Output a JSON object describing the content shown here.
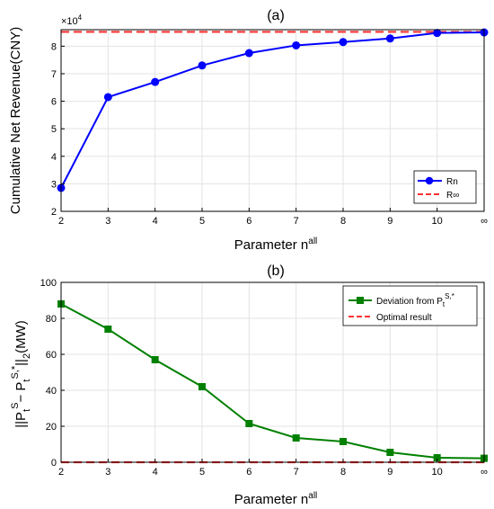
{
  "chart_data": [
    {
      "type": "line",
      "title": "(a)",
      "xlabel_main": "Parameter n",
      "xlabel_sup": "all",
      "ylabel": "Cumulative Net Revenue(CNY)",
      "multiplier_base": "×10",
      "multiplier_exp": "4",
      "categories": [
        "2",
        "3",
        "4",
        "5",
        "6",
        "7",
        "8",
        "9",
        "10",
        "∞"
      ],
      "ylim": [
        2,
        8.6
      ],
      "yticks": [
        2,
        3,
        4,
        5,
        6,
        7,
        8
      ],
      "grid": true,
      "legend_position": "bottom-right",
      "series": [
        {
          "name": "Rn",
          "values": [
            2.85,
            6.15,
            6.7,
            7.3,
            7.75,
            8.03,
            8.15,
            8.28,
            8.48,
            8.5
          ],
          "color": "#0000ff",
          "marker": "circle",
          "style": "solid"
        },
        {
          "name": "R∞",
          "values": [
            8.52,
            8.52,
            8.52,
            8.52,
            8.52,
            8.52,
            8.52,
            8.52,
            8.52,
            8.52
          ],
          "color": "#ff3333",
          "marker": "none",
          "style": "dashed"
        }
      ]
    },
    {
      "type": "line",
      "title": "(b)",
      "xlabel_main": "Parameter n",
      "xlabel_sup": "all",
      "ylabel": "||P_t^S − P_t^{S,*}||_2(MW)",
      "categories": [
        "2",
        "3",
        "4",
        "5",
        "6",
        "7",
        "8",
        "9",
        "10",
        "∞"
      ],
      "ylim": [
        0,
        100
      ],
      "yticks": [
        0,
        20,
        40,
        60,
        80,
        100
      ],
      "grid": true,
      "legend_position": "top-right",
      "series": [
        {
          "name": "Deviation from P_t^{S,*}",
          "values": [
            88,
            74,
            57,
            42,
            21.5,
            13.5,
            11.5,
            5.5,
            2.5,
            2.2
          ],
          "color": "#008000",
          "marker": "square",
          "style": "solid"
        },
        {
          "name": "Optimal result",
          "values": [
            0,
            0,
            0,
            0,
            0,
            0,
            0,
            0,
            0,
            0
          ],
          "color": "#ff3333",
          "marker": "none",
          "style": "dashed"
        }
      ]
    }
  ]
}
